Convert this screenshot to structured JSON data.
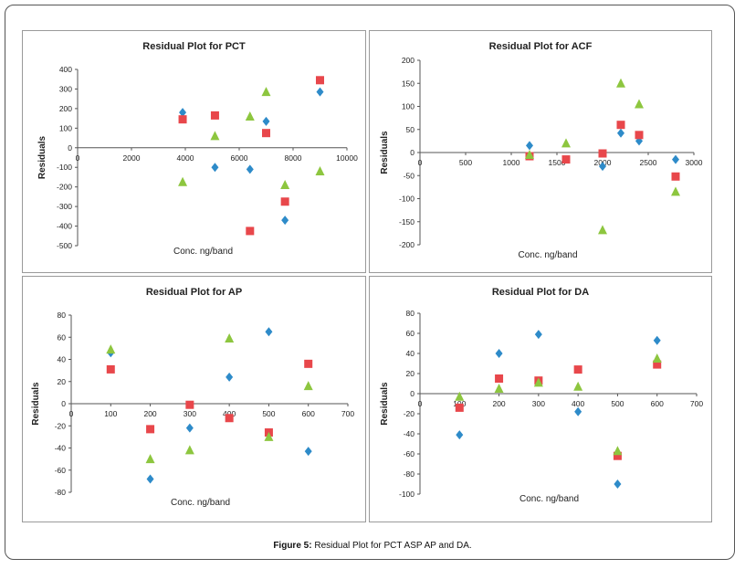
{
  "caption": {
    "label": "Figure 5:",
    "text": "Residual Plot for PCT ASP AP and DA."
  },
  "colors": {
    "series1": "#2e8bc9",
    "series2": "#e8474b",
    "series3": "#8dc63f",
    "axis": "#555555",
    "text": "#222222"
  },
  "chart_data": [
    {
      "type": "scatter",
      "title": "Residual Plot for PCT",
      "xlabel": "Conc. ng/band",
      "ylabel": "Residuals",
      "xlim": [
        0,
        10000
      ],
      "ylim": [
        -500,
        400
      ],
      "xticks": [
        0,
        2000,
        4000,
        6000,
        8000,
        10000
      ],
      "yticks": [
        -500,
        -400,
        -300,
        -200,
        -100,
        0,
        100,
        200,
        300,
        400
      ],
      "series": [
        {
          "marker": "diamond",
          "color": "#2e8bc9",
          "points": [
            [
              3900,
              180
            ],
            [
              5100,
              -100
            ],
            [
              6400,
              -110
            ],
            [
              7000,
              135
            ],
            [
              7700,
              -370
            ],
            [
              9000,
              285
            ]
          ]
        },
        {
          "marker": "square",
          "color": "#e8474b",
          "points": [
            [
              3900,
              145
            ],
            [
              5100,
              165
            ],
            [
              6400,
              -425
            ],
            [
              7000,
              75
            ],
            [
              7700,
              -275
            ],
            [
              9000,
              345
            ]
          ]
        },
        {
          "marker": "triangle",
          "color": "#8dc63f",
          "points": [
            [
              3900,
              -175
            ],
            [
              5100,
              60
            ],
            [
              6400,
              160
            ],
            [
              7000,
              285
            ],
            [
              7700,
              -190
            ],
            [
              9000,
              -120
            ]
          ]
        }
      ]
    },
    {
      "type": "scatter",
      "title": "Residual Plot for ACF",
      "xlabel": "Conc. ng/band",
      "ylabel": "Residuals",
      "xlim": [
        0,
        3000
      ],
      "ylim": [
        -200,
        200
      ],
      "xticks": [
        0,
        500,
        1000,
        1500,
        2000,
        2500,
        3000
      ],
      "yticks": [
        -200,
        -150,
        -100,
        -50,
        0,
        50,
        100,
        150,
        200
      ],
      "series": [
        {
          "marker": "diamond",
          "color": "#2e8bc9",
          "points": [
            [
              1200,
              15
            ],
            [
              2000,
              -30
            ],
            [
              2200,
              42
            ],
            [
              2400,
              25
            ],
            [
              2800,
              -15
            ]
          ]
        },
        {
          "marker": "square",
          "color": "#e8474b",
          "points": [
            [
              1200,
              -8
            ],
            [
              1600,
              -15
            ],
            [
              2000,
              -2
            ],
            [
              2200,
              60
            ],
            [
              2400,
              38
            ],
            [
              2800,
              -52
            ]
          ]
        },
        {
          "marker": "triangle",
          "color": "#8dc63f",
          "points": [
            [
              1200,
              -5
            ],
            [
              1600,
              20
            ],
            [
              2000,
              -168
            ],
            [
              2200,
              150
            ],
            [
              2400,
              105
            ],
            [
              2800,
              -85
            ]
          ]
        }
      ]
    },
    {
      "type": "scatter",
      "title": "Residual Plot for AP",
      "xlabel": "Conc. ng/band",
      "ylabel": "Residuals",
      "xlim": [
        0,
        700
      ],
      "ylim": [
        -80,
        80
      ],
      "xticks": [
        0,
        100,
        200,
        300,
        400,
        500,
        600,
        700
      ],
      "yticks": [
        -80,
        -60,
        -40,
        -20,
        0,
        20,
        40,
        60,
        80
      ],
      "series": [
        {
          "marker": "diamond",
          "color": "#2e8bc9",
          "points": [
            [
              100,
              46
            ],
            [
              200,
              -68
            ],
            [
              300,
              -22
            ],
            [
              400,
              24
            ],
            [
              500,
              65
            ],
            [
              600,
              -43
            ]
          ]
        },
        {
          "marker": "square",
          "color": "#e8474b",
          "points": [
            [
              100,
              31
            ],
            [
              200,
              -23
            ],
            [
              300,
              -1
            ],
            [
              400,
              -13
            ],
            [
              500,
              -26
            ],
            [
              600,
              36
            ]
          ]
        },
        {
          "marker": "triangle",
          "color": "#8dc63f",
          "points": [
            [
              100,
              49
            ],
            [
              200,
              -50
            ],
            [
              300,
              -42
            ],
            [
              400,
              59
            ],
            [
              500,
              -30
            ],
            [
              600,
              16
            ]
          ]
        }
      ]
    },
    {
      "type": "scatter",
      "title": "Residual Plot for DA",
      "xlabel": "Conc. ng/band",
      "ylabel": "Residuals",
      "xlim": [
        0,
        700
      ],
      "ylim": [
        -100,
        80
      ],
      "xticks": [
        0,
        100,
        200,
        300,
        400,
        500,
        600,
        700
      ],
      "yticks": [
        -100,
        -80,
        -60,
        -40,
        -20,
        0,
        20,
        40,
        60,
        80
      ],
      "series": [
        {
          "marker": "diamond",
          "color": "#2e8bc9",
          "points": [
            [
              100,
              -41
            ],
            [
              200,
              40
            ],
            [
              300,
              59
            ],
            [
              400,
              -18
            ],
            [
              500,
              -90
            ],
            [
              600,
              53
            ]
          ]
        },
        {
          "marker": "square",
          "color": "#e8474b",
          "points": [
            [
              100,
              -14
            ],
            [
              200,
              15
            ],
            [
              300,
              13
            ],
            [
              400,
              24
            ],
            [
              500,
              -62
            ],
            [
              600,
              29
            ]
          ]
        },
        {
          "marker": "triangle",
          "color": "#8dc63f",
          "points": [
            [
              100,
              -3
            ],
            [
              200,
              5
            ],
            [
              300,
              11
            ],
            [
              400,
              7
            ],
            [
              500,
              -57
            ],
            [
              600,
              35
            ]
          ]
        }
      ]
    }
  ]
}
